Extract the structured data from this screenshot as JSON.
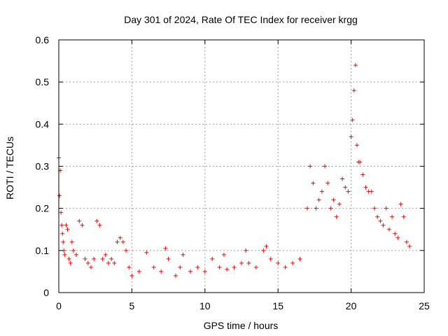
{
  "chart_data": {
    "type": "scatter",
    "title": "Day 301 of 2024, Rate Of TEC Index for receiver krgg",
    "xlabel": "GPS time / hours",
    "ylabel": "ROTI / TECUs",
    "xlim": [
      0,
      25
    ],
    "ylim": [
      0,
      0.6
    ],
    "xticks": [
      "0",
      "5",
      "10",
      "15",
      "20",
      "25"
    ],
    "yticks": [
      "0",
      "0.1",
      "0.2",
      "0.3",
      "0.4",
      "0.5",
      "0.6"
    ],
    "grid": true,
    "marker": "+",
    "color": "#ff0000",
    "series": [
      {
        "name": "ROTI",
        "x": [
          0.0,
          0.05,
          0.1,
          0.15,
          0.2,
          0.25,
          0.3,
          0.35,
          0.4,
          0.5,
          0.6,
          0.7,
          0.8,
          0.9,
          1.0,
          1.2,
          1.4,
          1.6,
          1.8,
          2.0,
          2.2,
          2.4,
          2.6,
          2.8,
          3.0,
          3.2,
          3.4,
          3.6,
          3.8,
          4.0,
          4.2,
          4.4,
          4.6,
          4.8,
          5.0,
          5.5,
          6.0,
          6.5,
          7.0,
          7.3,
          7.5,
          8.0,
          8.3,
          8.5,
          9.0,
          9.5,
          10.0,
          10.5,
          11.0,
          11.3,
          11.5,
          12.0,
          12.5,
          12.8,
          13.0,
          13.5,
          14.0,
          14.2,
          14.5,
          15.0,
          15.5,
          16.0,
          16.5,
          17.0,
          17.2,
          17.4,
          17.6,
          17.8,
          18.0,
          18.2,
          18.4,
          18.6,
          18.8,
          19.0,
          19.2,
          19.4,
          19.6,
          19.8,
          20.0,
          20.1,
          20.2,
          20.3,
          20.4,
          20.5,
          20.6,
          20.8,
          21.0,
          21.2,
          21.4,
          21.6,
          21.8,
          22.0,
          22.2,
          22.4,
          22.6,
          22.8,
          23.0,
          23.2,
          23.4,
          23.6,
          23.8,
          24.0
        ],
        "y": [
          0.32,
          0.23,
          0.29,
          0.19,
          0.16,
          0.14,
          0.12,
          0.1,
          0.09,
          0.16,
          0.15,
          0.08,
          0.07,
          0.12,
          0.1,
          0.09,
          0.17,
          0.16,
          0.08,
          0.07,
          0.06,
          0.08,
          0.17,
          0.16,
          0.08,
          0.09,
          0.07,
          0.08,
          0.07,
          0.12,
          0.13,
          0.12,
          0.1,
          0.06,
          0.04,
          0.05,
          0.095,
          0.06,
          0.05,
          0.105,
          0.08,
          0.04,
          0.06,
          0.09,
          0.05,
          0.06,
          0.05,
          0.08,
          0.06,
          0.09,
          0.055,
          0.06,
          0.07,
          0.1,
          0.07,
          0.06,
          0.1,
          0.11,
          0.08,
          0.07,
          0.06,
          0.07,
          0.08,
          0.2,
          0.3,
          0.26,
          0.2,
          0.22,
          0.24,
          0.3,
          0.26,
          0.2,
          0.22,
          0.18,
          0.21,
          0.27,
          0.25,
          0.24,
          0.37,
          0.41,
          0.48,
          0.54,
          0.35,
          0.31,
          0.31,
          0.28,
          0.25,
          0.24,
          0.24,
          0.2,
          0.18,
          0.17,
          0.16,
          0.2,
          0.15,
          0.18,
          0.14,
          0.13,
          0.21,
          0.18,
          0.12,
          0.11
        ]
      }
    ]
  }
}
